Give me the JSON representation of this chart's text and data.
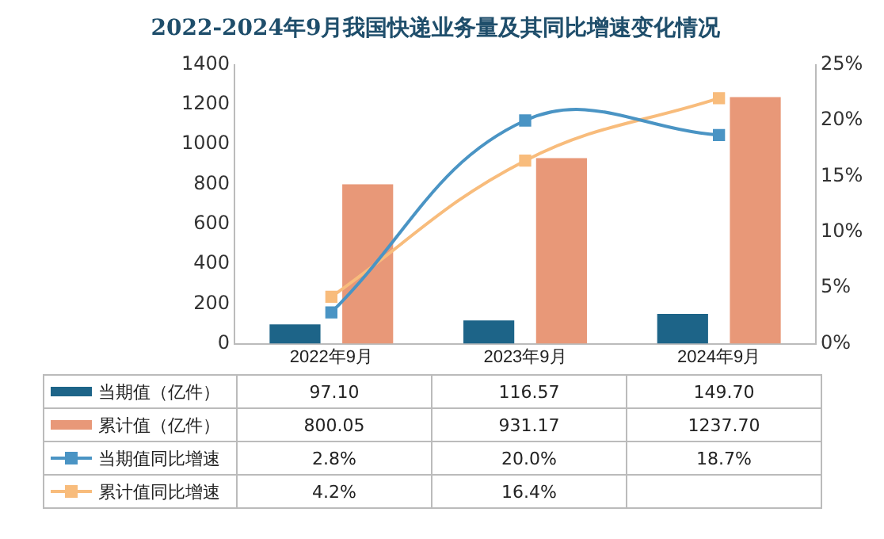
{
  "chart_data": {
    "type": "bar",
    "title": "2022-2024年9月我国快递业务量及其同比增速变化情况",
    "categories": [
      "2022年9月",
      "2023年9月",
      "2024年9月"
    ],
    "series": [
      {
        "name": "当期值（亿件）",
        "color": "#1d6488",
        "values": [
          97.1,
          116.57,
          149.7
        ],
        "value_labels": [
          "97.10",
          "116.57",
          "149.70"
        ]
      },
      {
        "name": "累计值（亿件）",
        "color": "#e89878",
        "values": [
          800.05,
          931.17,
          1237.7
        ],
        "value_labels": [
          "800.05",
          "931.17",
          "1237.70"
        ]
      },
      {
        "name": "当期值同比增速",
        "type": "line",
        "axis": "y2",
        "color": "#4a94c4",
        "values": [
          2.8,
          20.0,
          18.7
        ],
        "value_labels": [
          "2.8%",
          "20.0%",
          "18.7%"
        ]
      },
      {
        "name": "累计值同比增速",
        "type": "line",
        "axis": "y2",
        "color": "#f8bc7c",
        "values": [
          4.2,
          16.4,
          22
        ],
        "value_labels": [
          "4.2%",
          "16.4%",
          null
        ]
      }
    ],
    "ylim": [
      0,
      1400
    ],
    "yticks": [
      0,
      200,
      400,
      600,
      800,
      1000,
      1200,
      1400
    ],
    "y2lim": [
      0,
      25
    ],
    "y2ticks": [
      {
        "value": 0,
        "label": "0%"
      },
      {
        "value": 5,
        "label": "5%"
      },
      {
        "value": 10,
        "label": "10%"
      },
      {
        "value": 15,
        "label": "15%"
      },
      {
        "value": 20,
        "label": "20%"
      },
      {
        "value": 25,
        "label": "25%"
      }
    ],
    "grid": false,
    "legend": "bottom",
    "marker": "square"
  }
}
